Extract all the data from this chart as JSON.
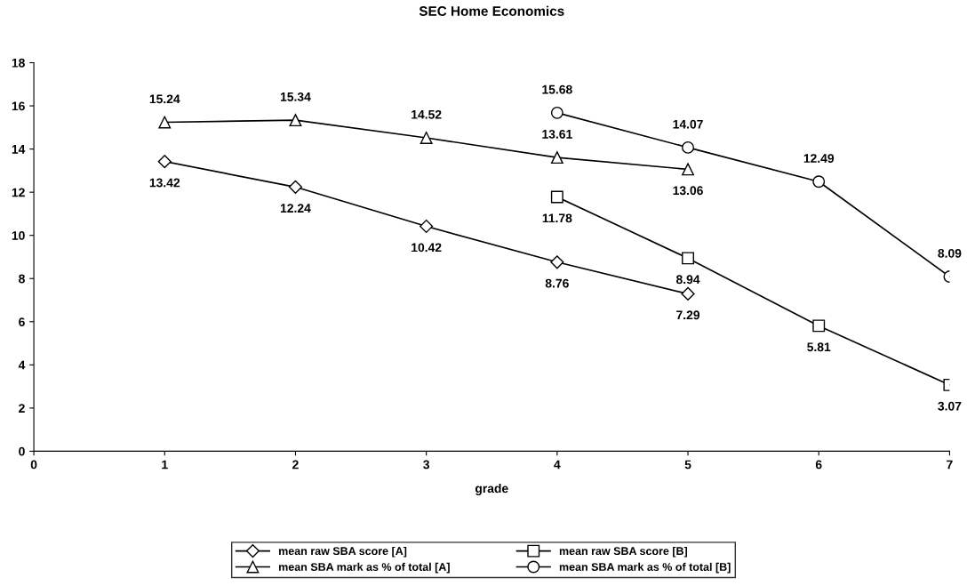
{
  "chart_data": {
    "type": "line",
    "title": "SEC Home Economics",
    "xlabel": "grade",
    "xlim": [
      0,
      7
    ],
    "xticks": [
      0,
      1,
      2,
      3,
      4,
      5,
      6,
      7
    ],
    "ylim": [
      0,
      18
    ],
    "yticks": [
      0,
      2,
      4,
      6,
      8,
      10,
      12,
      14,
      16,
      18
    ],
    "grid": false,
    "legend": "bottom",
    "data_labels": true,
    "line_style": "solid",
    "series": [
      {
        "name": "mean raw SBA score [A]",
        "color": "#000000",
        "marker": "diamond",
        "x": [
          1,
          2,
          3,
          4,
          5
        ],
        "values": [
          13.42,
          12.24,
          10.42,
          8.76,
          7.29
        ]
      },
      {
        "name": "mean raw SBA score [B]",
        "color": "#000000",
        "marker": "square",
        "x": [
          4,
          5,
          6,
          7
        ],
        "values": [
          11.78,
          8.94,
          5.81,
          3.07
        ]
      },
      {
        "name": "mean SBA mark as % of total [A]",
        "color": "#000000",
        "marker": "triangle",
        "x": [
          1,
          2,
          3,
          4,
          5
        ],
        "values": [
          15.24,
          15.34,
          14.52,
          13.61,
          13.06
        ]
      },
      {
        "name": "mean SBA mark as % of total [B]",
        "color": "#000000",
        "marker": "circle",
        "x": [
          4,
          5,
          6,
          7
        ],
        "values": [
          15.68,
          14.07,
          12.49,
          8.09
        ]
      }
    ]
  }
}
